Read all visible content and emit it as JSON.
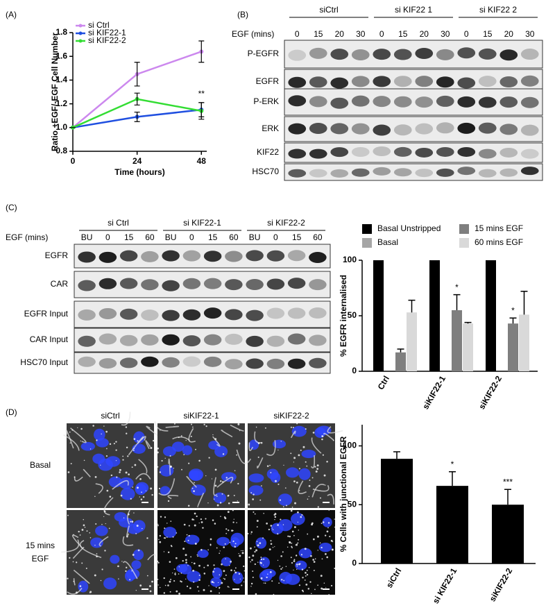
{
  "chart_data": [
    {
      "type": "line",
      "panel_label": "(A)",
      "xlabel": "Time (hours)",
      "ylabel": "Ratio +EGF/-EGF Cell Number",
      "x": [
        0,
        24,
        48
      ],
      "xlim": [
        0,
        50
      ],
      "xticks": [
        0,
        24,
        48
      ],
      "ylim": [
        0.8,
        1.8
      ],
      "yticks": [
        0.8,
        {
          "value": 1,
          "label": "1.0"
        },
        1.2,
        1.4,
        1.6,
        1.8
      ],
      "legend": "upper left",
      "series": [
        {
          "name": "si Ctrl",
          "color": "#cc88ee",
          "values": [
            1,
            1.45,
            1.64
          ],
          "errors": [
            0,
            0.1,
            0.09
          ]
        },
        {
          "name": "si KIF22-1",
          "color": "#1f4fe0",
          "values": [
            1,
            1.09,
            1.15
          ],
          "errors": [
            0,
            0.04,
            0.06
          ],
          "annotations": [
            null,
            null,
            "**"
          ]
        },
        {
          "name": "si KIF22-2",
          "color": "#33dd33",
          "values": [
            1,
            1.24,
            1.14
          ],
          "errors": [
            0,
            0.05,
            0.07
          ]
        }
      ]
    },
    {
      "type": "bar",
      "ylabel": "% EGFR internalised",
      "categories": [
        "Ctrl",
        "siKIF22-1",
        "siKIF22-2"
      ],
      "ylim": [
        0,
        100
      ],
      "yticks": [
        0,
        50,
        100
      ],
      "legend": "top",
      "series": [
        {
          "name": "Basal Unstripped",
          "color": "#000000",
          "values": [
            100,
            100,
            100
          ]
        },
        {
          "name": "Basal",
          "color": "#a6a6a6",
          "values": [
            0,
            0,
            0
          ]
        },
        {
          "name": "15 mins EGF",
          "color": "#7f7f7f",
          "values": [
            17,
            55,
            43
          ],
          "errors": [
            3,
            14,
            5
          ],
          "annotations": [
            null,
            "*",
            "*"
          ]
        },
        {
          "name": "60 mins EGF",
          "color": "#d9d9d9",
          "values": [
            53,
            43,
            51
          ],
          "errors": [
            11,
            1,
            21
          ]
        }
      ]
    },
    {
      "type": "bar",
      "ylabel": "% Cells with junctional EGFR",
      "categories": [
        "siCtrl",
        "si KIF22-1",
        "siKIF22-2"
      ],
      "ylim": [
        0,
        118
      ],
      "yticks": [
        0,
        50,
        100
      ],
      "color": "#000000",
      "values": [
        89,
        66,
        50
      ],
      "errors": [
        6,
        12,
        13
      ],
      "annotations": [
        null,
        "*",
        "***"
      ]
    }
  ],
  "blot_b": {
    "label": "(B)",
    "treatment": "EGF (mins)",
    "groups": [
      {
        "name": "siCtrl",
        "lanes": [
          "0",
          "15",
          "20",
          "30"
        ]
      },
      {
        "name": "si KIF22 1",
        "lanes": [
          "0",
          "15",
          "20",
          "30"
        ]
      },
      {
        "name": "si KIF22 2",
        "lanes": [
          "0",
          "15",
          "20",
          "30"
        ]
      }
    ],
    "rows": [
      "P-EGFR",
      "EGFR",
      "P-ERK",
      "ERK",
      "KIF22",
      "HSC70"
    ]
  },
  "blot_c": {
    "label": "(C)",
    "treatment": "EGF (mins)",
    "groups": [
      {
        "name": "si Ctrl",
        "lanes": [
          "BU",
          "0",
          "15",
          "60"
        ]
      },
      {
        "name": "si KIF22-1",
        "lanes": [
          "BU",
          "0",
          "15",
          "60"
        ]
      },
      {
        "name": "si KIF22-2",
        "lanes": [
          "BU",
          "0",
          "15",
          "60"
        ]
      }
    ],
    "rows": [
      "EGFR",
      "CAR",
      "EGFR Input",
      "CAR Input",
      "HSC70 Input"
    ]
  },
  "images_d": {
    "label": "(D)",
    "columns": [
      "siCtrl",
      "siKIF22-1",
      "siKIF22-2"
    ],
    "rows": [
      [
        "Basal"
      ],
      [
        "15 mins",
        "EGF"
      ]
    ]
  }
}
